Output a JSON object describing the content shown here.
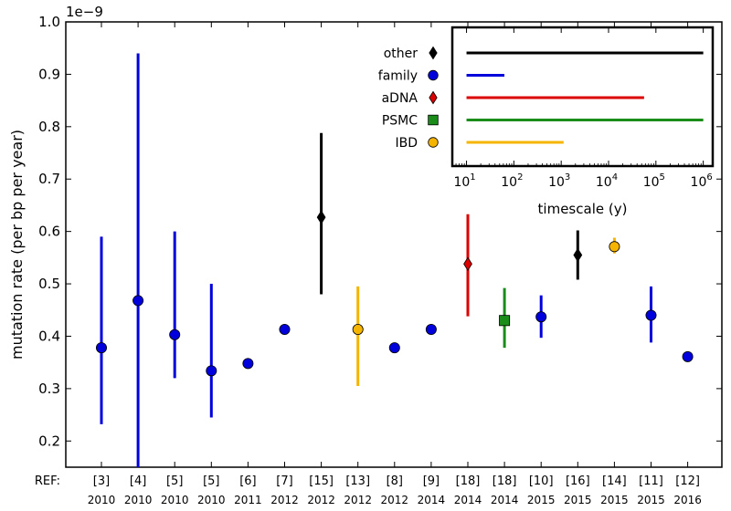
{
  "chart_data": {
    "type": "scatter",
    "multiplier_label": "1e−9",
    "ylabel": "mutation rate (per bp per year)",
    "ylim": [
      0.15,
      1.0
    ],
    "yticks": [
      0.2,
      0.3,
      0.4,
      0.5,
      0.6,
      0.7,
      0.8,
      0.9,
      1.0
    ],
    "ytick_labels": [
      "0.2",
      "0.3",
      "0.4",
      "0.5",
      "0.6",
      "0.7",
      "0.8",
      "0.9",
      "1.0"
    ],
    "ref_label": "REF:",
    "colors": {
      "family": "#0000dd",
      "other": "#000000",
      "aDNA": "#dd0000",
      "PSMC": "#1a8c1a",
      "IBD": "#f5b400"
    },
    "points": [
      {
        "ref": "[3]",
        "year": "2010",
        "method": "family",
        "value": 0.378,
        "err_low": 0.232,
        "err_high": 0.59
      },
      {
        "ref": "[4]",
        "year": "2010",
        "method": "family",
        "value": 0.468,
        "err_low": 0.15,
        "err_high": 0.94
      },
      {
        "ref": "[5]",
        "year": "2010",
        "method": "family",
        "value": 0.403,
        "err_low": 0.32,
        "err_high": 0.6
      },
      {
        "ref": "[5]",
        "year": "2010",
        "method": "family",
        "value": 0.334,
        "err_low": 0.245,
        "err_high": 0.5
      },
      {
        "ref": "[6]",
        "year": "2011",
        "method": "family",
        "value": 0.348,
        "err_low": null,
        "err_high": null
      },
      {
        "ref": "[7]",
        "year": "2012",
        "method": "family",
        "value": 0.413,
        "err_low": null,
        "err_high": null
      },
      {
        "ref": "[15]",
        "year": "2012",
        "method": "other",
        "value": 0.627,
        "err_low": 0.48,
        "err_high": 0.788
      },
      {
        "ref": "[13]",
        "year": "2012",
        "method": "IBD",
        "value": 0.413,
        "err_low": 0.305,
        "err_high": 0.495
      },
      {
        "ref": "[8]",
        "year": "2012",
        "method": "family",
        "value": 0.378,
        "err_low": null,
        "err_high": null
      },
      {
        "ref": "[9]",
        "year": "2014",
        "method": "family",
        "value": 0.413,
        "err_low": null,
        "err_high": null
      },
      {
        "ref": "[18]",
        "year": "2014",
        "method": "aDNA",
        "value": 0.538,
        "err_low": 0.438,
        "err_high": 0.633
      },
      {
        "ref": "[18]",
        "year": "2014",
        "method": "PSMC",
        "value": 0.43,
        "err_low": 0.378,
        "err_high": 0.492
      },
      {
        "ref": "[10]",
        "year": "2015",
        "method": "family",
        "value": 0.437,
        "err_low": 0.397,
        "err_high": 0.478
      },
      {
        "ref": "[16]",
        "year": "2015",
        "method": "other",
        "value": 0.555,
        "err_low": 0.508,
        "err_high": 0.602
      },
      {
        "ref": "[14]",
        "year": "2015",
        "method": "IBD",
        "value": 0.571,
        "err_low": 0.558,
        "err_high": 0.588
      },
      {
        "ref": "[11]",
        "year": "2015",
        "method": "family",
        "value": 0.44,
        "err_low": 0.388,
        "err_high": 0.495
      },
      {
        "ref": "[12]",
        "year": "2016",
        "method": "family",
        "value": 0.361,
        "err_low": null,
        "err_high": null
      }
    ],
    "inset": {
      "xlabel": "timescale (y)",
      "xscale": "log",
      "xlim_exp": [
        0.7,
        6.2
      ],
      "tick_exponents": [
        1,
        2,
        3,
        4,
        5,
        6
      ],
      "tick_base": "10",
      "entries": [
        {
          "label": "other",
          "method": "other",
          "marker": "diamond",
          "range_exp": [
            1.0,
            6.0
          ]
        },
        {
          "label": "family",
          "method": "family",
          "marker": "circle",
          "range_exp": [
            1.0,
            1.8
          ]
        },
        {
          "label": "aDNA",
          "method": "aDNA",
          "marker": "diamond",
          "range_exp": [
            1.0,
            4.75
          ]
        },
        {
          "label": "PSMC",
          "method": "PSMC",
          "marker": "square",
          "range_exp": [
            1.0,
            6.0
          ]
        },
        {
          "label": "IBD",
          "method": "IBD",
          "marker": "circle",
          "range_exp": [
            1.0,
            3.05
          ]
        }
      ]
    }
  }
}
